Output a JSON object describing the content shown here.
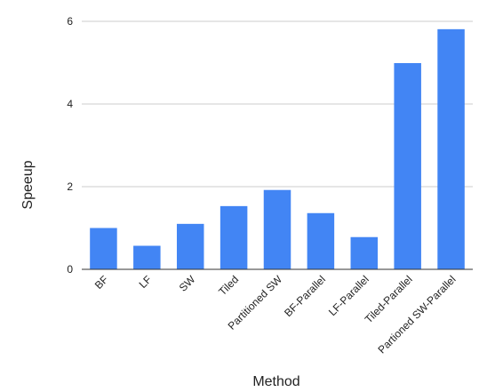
{
  "chart_data": {
    "type": "bar",
    "categories": [
      "BF",
      "LF",
      "SW",
      "Tiled",
      "Partitioned SW",
      "BF-Parallel",
      "LF-Parallel",
      "Tiled-Parallel",
      "Partioned SW-Parallel"
    ],
    "values": [
      1.0,
      0.57,
      1.1,
      1.53,
      1.92,
      1.36,
      0.78,
      4.99,
      5.81
    ],
    "title": "",
    "xlabel": "Method",
    "ylabel": "Speeup",
    "ylim": [
      0,
      6
    ],
    "yticks": [
      0,
      2,
      4,
      6
    ],
    "grid": true,
    "legend": "none",
    "bar_color": "#4285F4",
    "grid_color": "#cccccc",
    "axis_color": "#333333"
  }
}
